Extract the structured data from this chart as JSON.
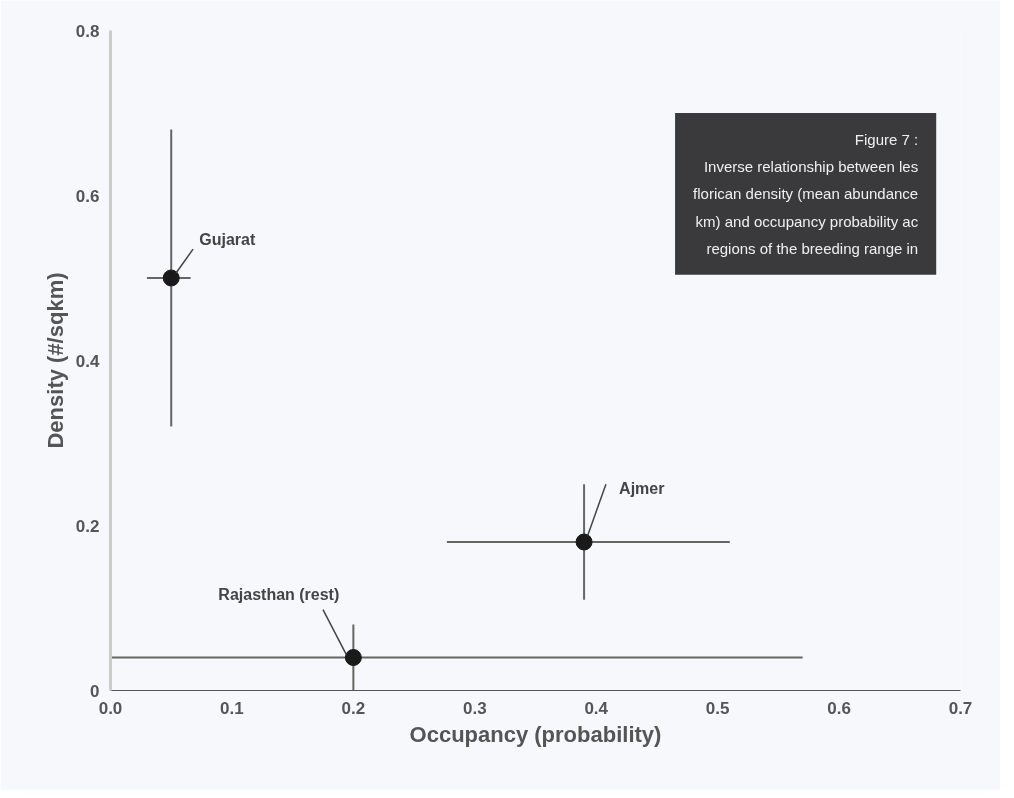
{
  "chart_data": {
    "type": "scatter",
    "xlabel": "Occupancy (probability)",
    "ylabel": "Density (#/sqkm)",
    "x": [
      0.05,
      0.39,
      0.2
    ],
    "series": [
      {
        "color": "#1a1a1a",
        "values": [
          0.5,
          0.18,
          0.04
        ],
        "errors": [
          [
            0.32,
            0.68
          ],
          [
            0.11,
            0.25
          ],
          [
            0,
            0.08
          ]
        ],
        "xerrors": [
          [
            0.03,
            0.066
          ],
          [
            0.277,
            0.51
          ],
          [
            0,
            0.57
          ]
        ]
      }
    ],
    "marker": "circle",
    "grid": false,
    "xlim": [
      0,
      0.7
    ],
    "ylim": [
      0,
      0.8
    ],
    "xticks": [
      {
        "value": 0,
        "label": "0.0"
      },
      0.1,
      0.2,
      0.3,
      0.4,
      0.5,
      0.6,
      0.7
    ],
    "yticks": [
      0,
      0.2,
      0.4,
      0.6,
      0.8
    ],
    "annotations": [
      {
        "text": "Gujarat",
        "x": 0.05,
        "y": 0.5
      },
      {
        "text": "Ajmer",
        "x": 0.39,
        "y": 0.18
      },
      {
        "text": "Rajasthan (rest)",
        "x": 0.2,
        "y": 0.04
      },
      "Figure 7 :\nInverse relationship between les\nflorican density (mean abundance\nkm) and occupancy probability ac\nregions of the breeding range in"
    ]
  }
}
